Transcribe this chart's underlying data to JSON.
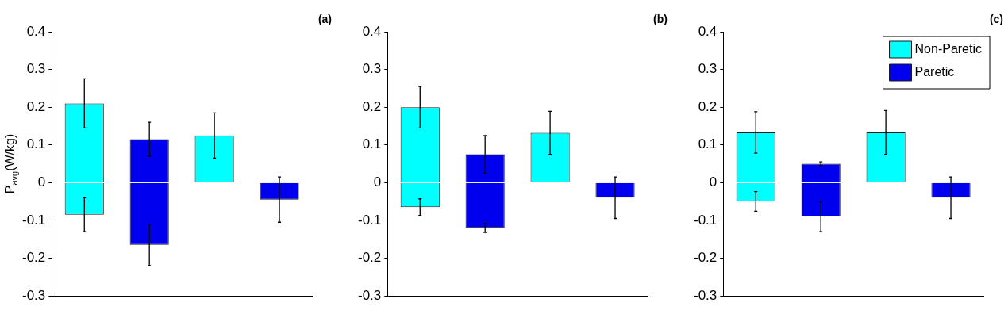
{
  "chart_data": [
    {
      "type": "bar",
      "stacked": true,
      "title": "(a)",
      "ylabel": "P$_{avg}$(W/kg)",
      "categories": [
        null,
        null,
        null,
        null
      ],
      "ylim": [
        -0.3,
        0.4
      ],
      "yticks": [
        -0.3,
        -0.2,
        -0.1,
        0,
        0.1,
        0.2,
        0.3,
        0.4
      ],
      "grid": false,
      "legend": false,
      "series": [
        {
          "color": "#00ffff",
          "values": [
            0.21,
            null,
            0.125,
            null
          ],
          "errors": [
            0.065,
            null,
            0.06,
            null
          ]
        },
        {
          "color": "#00ffff",
          "values": [
            -0.085,
            null,
            null,
            null
          ],
          "errors": [
            0.045,
            null,
            null,
            null
          ]
        },
        {
          "color": "#0000ee",
          "values": [
            null,
            0.115,
            null,
            -0.045
          ],
          "errors": [
            null,
            0.045,
            null,
            0.06
          ]
        },
        {
          "color": "#0000ee",
          "values": [
            null,
            -0.165,
            null,
            null
          ],
          "errors": [
            null,
            0.055,
            null,
            null
          ]
        }
      ]
    },
    {
      "type": "bar",
      "stacked": true,
      "title": "(b)",
      "categories": [
        null,
        null,
        null,
        null
      ],
      "ylim": [
        -0.3,
        0.4
      ],
      "yticks": [
        -0.3,
        -0.2,
        -0.1,
        0,
        0.1,
        0.2,
        0.3,
        0.4
      ],
      "grid": false,
      "legend": false,
      "series": [
        {
          "color": "#00ffff",
          "values": [
            0.2,
            null,
            0.132,
            null
          ],
          "errors": [
            0.055,
            null,
            0.057,
            null
          ]
        },
        {
          "color": "#00ffff",
          "values": [
            -0.065,
            null,
            null,
            null
          ],
          "errors": [
            0.022,
            null,
            null,
            null
          ]
        },
        {
          "color": "#0000ee",
          "values": [
            null,
            0.075,
            null,
            -0.04
          ],
          "errors": [
            null,
            0.05,
            null,
            0.055
          ]
        },
        {
          "color": "#0000ee",
          "values": [
            null,
            -0.12,
            null,
            null
          ],
          "errors": [
            null,
            0.012,
            null,
            null
          ]
        }
      ]
    },
    {
      "type": "bar",
      "stacked": true,
      "title": "(c)",
      "categories": [
        null,
        null,
        null,
        null
      ],
      "ylim": [
        -0.3,
        0.4
      ],
      "yticks": [
        -0.3,
        -0.2,
        -0.1,
        0,
        0.1,
        0.2,
        0.3,
        0.4
      ],
      "grid": false,
      "legend": "top right",
      "series": [
        {
          "name": "Non-Paretic",
          "color": "#00ffff",
          "values": [
            0.133,
            null,
            0.133,
            null
          ],
          "errors": [
            0.055,
            null,
            0.058,
            null
          ]
        },
        {
          "color": "#00ffff",
          "values": [
            -0.05,
            null,
            null,
            null
          ],
          "errors": [
            0.026,
            null,
            null,
            null
          ]
        },
        {
          "name": "Paretic",
          "color": "#0000ee",
          "values": [
            null,
            0.05,
            null,
            -0.04
          ],
          "errors": [
            null,
            0.005,
            null,
            0.055
          ]
        },
        {
          "color": "#0000ee",
          "values": [
            null,
            -0.09,
            null,
            null
          ],
          "errors": [
            null,
            0.04,
            null,
            null
          ]
        }
      ]
    }
  ]
}
